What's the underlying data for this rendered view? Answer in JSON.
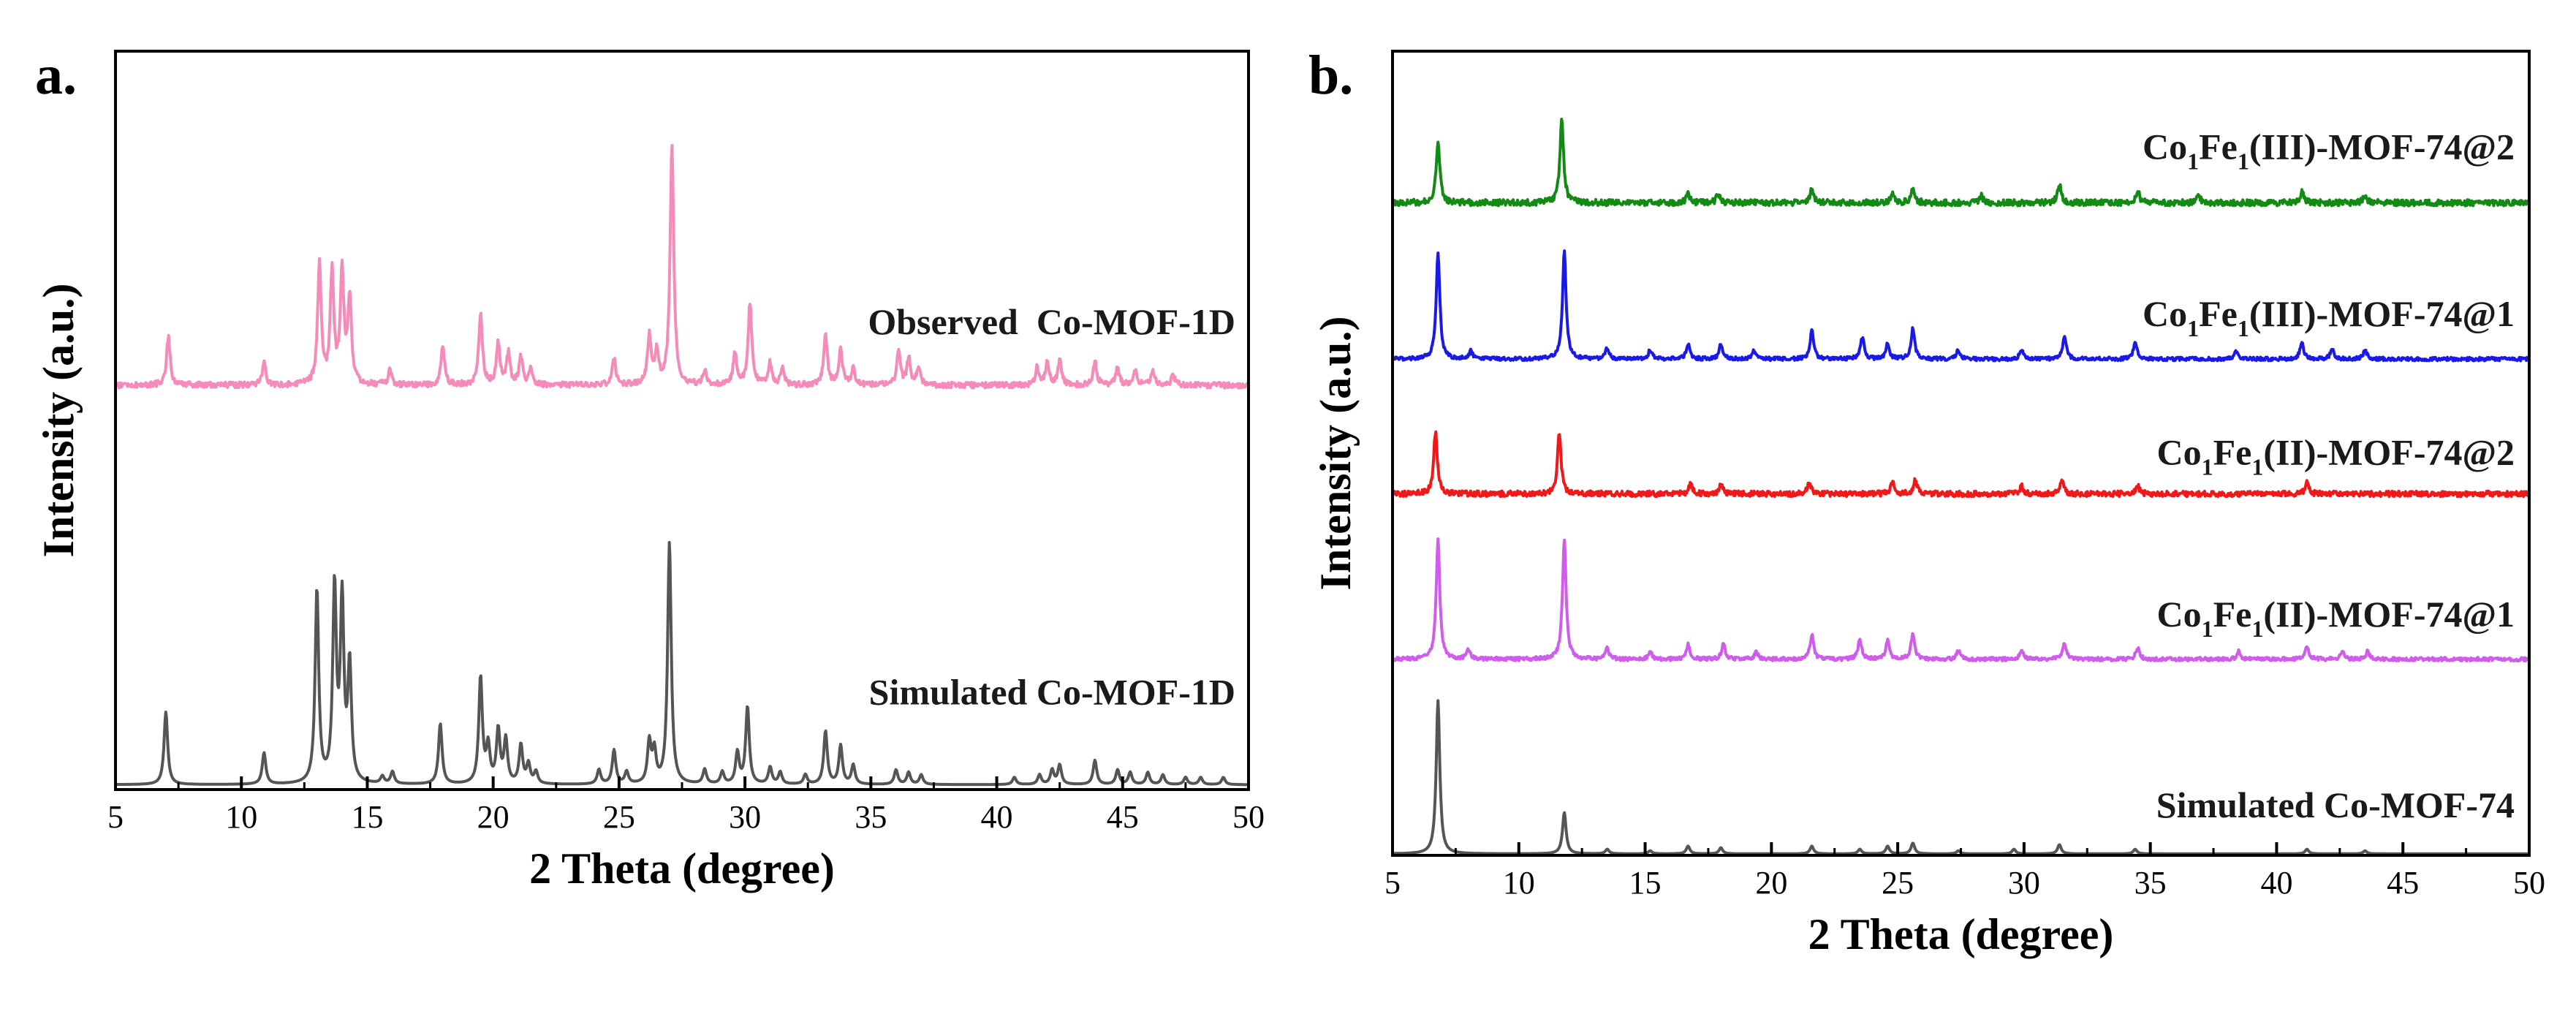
{
  "chart_data": [
    {
      "type": "line",
      "panel": "a",
      "panel_label": "a.",
      "xlabel": "2 Theta (degree)",
      "ylabel": "Intensity (a.u.)",
      "xlim": [
        5,
        50
      ],
      "xticks": [
        5,
        10,
        15,
        20,
        25,
        30,
        35,
        40,
        45,
        50
      ],
      "ylim": [
        0,
        3.05
      ],
      "grid": false,
      "y_ticks_shown": false,
      "series": [
        {
          "name": "Simulated Co-MOF-1D",
          "label": "Simulated Co-MOF-1D",
          "color": "#555555",
          "offset": 0.0,
          "baseline": 0.02,
          "noise": 0.0,
          "peaks": [
            [
              7.0,
              0.3
            ],
            [
              10.9,
              0.13
            ],
            [
              13.0,
              0.8
            ],
            [
              13.7,
              0.8
            ],
            [
              14.0,
              0.74
            ],
            [
              14.3,
              0.48
            ],
            [
              15.6,
              0.03
            ],
            [
              16.0,
              0.05
            ],
            [
              17.9,
              0.25
            ],
            [
              19.5,
              0.44
            ],
            [
              19.8,
              0.15
            ],
            [
              20.2,
              0.22
            ],
            [
              20.5,
              0.18
            ],
            [
              21.1,
              0.16
            ],
            [
              21.4,
              0.08
            ],
            [
              21.7,
              0.05
            ],
            [
              24.2,
              0.06
            ],
            [
              24.8,
              0.14
            ],
            [
              25.3,
              0.05
            ],
            [
              26.2,
              0.17
            ],
            [
              26.4,
              0.13
            ],
            [
              27.0,
              1.0
            ],
            [
              28.4,
              0.06
            ],
            [
              29.1,
              0.05
            ],
            [
              29.7,
              0.13
            ],
            [
              30.1,
              0.32
            ],
            [
              31.0,
              0.07
            ],
            [
              31.4,
              0.05
            ],
            [
              32.4,
              0.04
            ],
            [
              33.2,
              0.22
            ],
            [
              33.8,
              0.16
            ],
            [
              34.3,
              0.08
            ],
            [
              36.0,
              0.06
            ],
            [
              36.5,
              0.05
            ],
            [
              37.0,
              0.04
            ],
            [
              40.7,
              0.03
            ],
            [
              41.7,
              0.04
            ],
            [
              42.2,
              0.06
            ],
            [
              42.5,
              0.08
            ],
            [
              43.9,
              0.1
            ],
            [
              44.8,
              0.06
            ],
            [
              45.3,
              0.05
            ],
            [
              46.0,
              0.05
            ],
            [
              46.6,
              0.04
            ],
            [
              47.5,
              0.03
            ],
            [
              48.1,
              0.03
            ],
            [
              49.0,
              0.03
            ]
          ]
        },
        {
          "name": "Observed Co-MOF-1D",
          "label": "Observed  Co-MOF-1D",
          "color": "#f48bb9",
          "offset": 1.62,
          "baseline": 0.05,
          "noise": 0.012,
          "peaks": [
            [
              7.1,
              0.2
            ],
            [
              10.9,
              0.09
            ],
            [
              13.1,
              0.5
            ],
            [
              13.6,
              0.46
            ],
            [
              14.0,
              0.46
            ],
            [
              14.3,
              0.36
            ],
            [
              15.9,
              0.06
            ],
            [
              18.0,
              0.16
            ],
            [
              19.5,
              0.3
            ],
            [
              20.2,
              0.17
            ],
            [
              20.6,
              0.13
            ],
            [
              21.1,
              0.11
            ],
            [
              21.5,
              0.07
            ],
            [
              24.8,
              0.11
            ],
            [
              26.2,
              0.2
            ],
            [
              26.5,
              0.13
            ],
            [
              27.1,
              1.0
            ],
            [
              28.4,
              0.06
            ],
            [
              29.6,
              0.13
            ],
            [
              30.2,
              0.34
            ],
            [
              31.0,
              0.09
            ],
            [
              31.5,
              0.07
            ],
            [
              33.2,
              0.21
            ],
            [
              33.8,
              0.15
            ],
            [
              34.3,
              0.07
            ],
            [
              36.1,
              0.14
            ],
            [
              36.5,
              0.11
            ],
            [
              36.9,
              0.07
            ],
            [
              41.6,
              0.07
            ],
            [
              42.0,
              0.09
            ],
            [
              42.5,
              0.1
            ],
            [
              43.9,
              0.1
            ],
            [
              44.8,
              0.07
            ],
            [
              45.5,
              0.06
            ],
            [
              46.2,
              0.06
            ],
            [
              47.0,
              0.04
            ]
          ]
        }
      ]
    },
    {
      "type": "line",
      "panel": "b",
      "panel_label": "b.",
      "xlabel": "2 Theta (degree)",
      "ylabel": "Intensity (a.u.)",
      "xlim": [
        5,
        50
      ],
      "xticks": [
        5,
        10,
        15,
        20,
        25,
        30,
        35,
        40,
        45,
        50
      ],
      "ylim": [
        0,
        5.25
      ],
      "grid": false,
      "y_ticks_shown": false,
      "series": [
        {
          "name": "Simulated Co-MOF-74",
          "label": "Simulated Co-MOF-74",
          "color": "#555555",
          "offset": 0.0,
          "baseline": 0.01,
          "noise": 0.0,
          "peaks": [
            [
              6.8,
              1.0
            ],
            [
              11.8,
              0.27
            ],
            [
              13.5,
              0.03
            ],
            [
              15.2,
              0.02
            ],
            [
              16.7,
              0.05
            ],
            [
              18.0,
              0.04
            ],
            [
              21.6,
              0.05
            ],
            [
              23.5,
              0.03
            ],
            [
              24.6,
              0.05
            ],
            [
              25.6,
              0.07
            ],
            [
              27.4,
              0.02
            ],
            [
              29.6,
              0.03
            ],
            [
              31.4,
              0.06
            ],
            [
              34.4,
              0.03
            ],
            [
              41.2,
              0.03
            ],
            [
              43.5,
              0.02
            ]
          ]
        },
        {
          "name": "Co1Fe1(II)-MOF-74@1",
          "label_main": "Co",
          "label_parts": [
            "Co",
            "1",
            "Fe",
            "1",
            "(II)-MOF-74@1"
          ],
          "color": "#d05cec",
          "offset": 1.22,
          "baseline": 0.06,
          "noise": 0.012,
          "peaks": [
            [
              6.8,
              0.78
            ],
            [
              8.0,
              0.06
            ],
            [
              11.8,
              0.78
            ],
            [
              13.5,
              0.07
            ],
            [
              15.2,
              0.05
            ],
            [
              16.7,
              0.1
            ],
            [
              18.1,
              0.1
            ],
            [
              19.4,
              0.05
            ],
            [
              21.6,
              0.16
            ],
            [
              23.5,
              0.13
            ],
            [
              24.6,
              0.12
            ],
            [
              25.6,
              0.17
            ],
            [
              27.4,
              0.06
            ],
            [
              29.9,
              0.06
            ],
            [
              31.6,
              0.11
            ],
            [
              34.5,
              0.08
            ],
            [
              38.5,
              0.05
            ],
            [
              41.2,
              0.09
            ],
            [
              42.6,
              0.06
            ],
            [
              43.6,
              0.05
            ]
          ]
        },
        {
          "name": "Co1Fe1(II)-MOF-74@2",
          "label_parts": [
            "Co",
            "1",
            "Fe",
            "1",
            "(II)-MOF-74@2"
          ],
          "color": "#f01818",
          "offset": 2.32,
          "baseline": 0.04,
          "noise": 0.018,
          "peaks": [
            [
              6.7,
              0.4
            ],
            [
              11.6,
              0.4
            ],
            [
              16.8,
              0.06
            ],
            [
              18.0,
              0.06
            ],
            [
              21.5,
              0.07
            ],
            [
              24.8,
              0.08
            ],
            [
              25.7,
              0.09
            ],
            [
              29.9,
              0.05
            ],
            [
              31.5,
              0.09
            ],
            [
              34.5,
              0.05
            ],
            [
              41.2,
              0.07
            ]
          ]
        },
        {
          "name": "Co1Fe1(III)-MOF-74@1",
          "label_parts": [
            "Co",
            "1",
            "Fe",
            "1",
            "(III)-MOF-74@1"
          ],
          "color": "#1a1ae8",
          "offset": 3.2,
          "baseline": 0.04,
          "noise": 0.012,
          "peaks": [
            [
              6.8,
              0.7
            ],
            [
              8.1,
              0.05
            ],
            [
              11.8,
              0.7
            ],
            [
              13.5,
              0.07
            ],
            [
              15.2,
              0.06
            ],
            [
              16.7,
              0.1
            ],
            [
              18.0,
              0.1
            ],
            [
              19.3,
              0.06
            ],
            [
              21.6,
              0.19
            ],
            [
              23.6,
              0.14
            ],
            [
              24.6,
              0.1
            ],
            [
              25.6,
              0.2
            ],
            [
              27.4,
              0.06
            ],
            [
              29.9,
              0.06
            ],
            [
              31.6,
              0.15
            ],
            [
              34.4,
              0.11
            ],
            [
              38.4,
              0.05
            ],
            [
              41.0,
              0.11
            ],
            [
              42.2,
              0.07
            ],
            [
              43.5,
              0.06
            ]
          ]
        },
        {
          "name": "Co1Fe1(III)-MOF-74@2",
          "label_parts": [
            "Co",
            "1",
            "Fe",
            "1",
            "(III)-MOF-74@2"
          ],
          "color": "#138a13",
          "offset": 4.22,
          "baseline": 0.04,
          "noise": 0.02,
          "peaks": [
            [
              6.8,
              0.4
            ],
            [
              11.7,
              0.55
            ],
            [
              16.7,
              0.06
            ],
            [
              17.9,
              0.06
            ],
            [
              21.6,
              0.09
            ],
            [
              24.8,
              0.07
            ],
            [
              25.6,
              0.09
            ],
            [
              28.3,
              0.05
            ],
            [
              31.4,
              0.12
            ],
            [
              34.5,
              0.08
            ],
            [
              36.9,
              0.05
            ],
            [
              41.0,
              0.07
            ],
            [
              43.5,
              0.05
            ]
          ]
        }
      ]
    }
  ]
}
